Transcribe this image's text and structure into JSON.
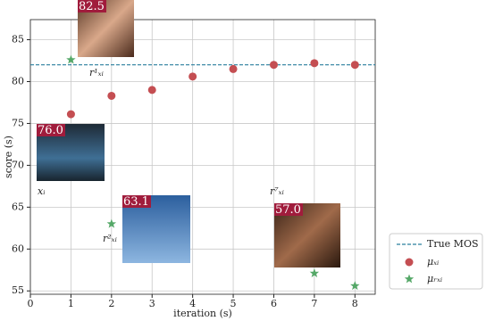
{
  "chart_data": {
    "type": "scatter",
    "xlabel": "iteration (s)",
    "ylabel": "score (s)",
    "xlim": [
      0,
      8.5
    ],
    "ylim": [
      54.6,
      87.4
    ],
    "xticks": [
      0,
      1,
      2,
      3,
      4,
      5,
      6,
      7,
      8
    ],
    "yticks": [
      55,
      60,
      65,
      70,
      75,
      80,
      85
    ],
    "grid": true,
    "legend": "right",
    "reference_lines": [
      {
        "name": "True MOS",
        "value": 82,
        "color": "#2a7f9e"
      }
    ],
    "series": [
      {
        "name": "μₓᵢ",
        "color": "#c44e52",
        "marker": "circle",
        "x": [
          1,
          2,
          3,
          4,
          5,
          6,
          7,
          8
        ],
        "values": [
          76.1,
          78.3,
          79.0,
          80.6,
          81.5,
          82.0,
          82.2,
          82.0
        ]
      },
      {
        "name": "μᵣₓᵢ",
        "color": "#55a868",
        "marker": "star",
        "x": [
          1,
          2,
          7,
          8
        ],
        "values": [
          82.6,
          63.0,
          57.1,
          55.6
        ]
      }
    ],
    "image_labels": [
      "82.5",
      "76.0",
      "63.1",
      "57.0"
    ],
    "annotations": [
      "r¹ₓᵢ",
      "xᵢ",
      "r²ₓᵢ",
      "r⁷ₓᵢ"
    ]
  }
}
